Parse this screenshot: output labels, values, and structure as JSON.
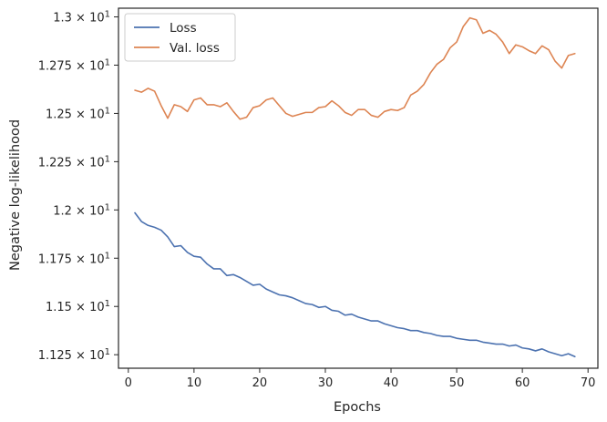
{
  "chart_data": {
    "type": "line",
    "xlabel": "Epochs",
    "ylabel": "Negative log-likelihood",
    "xlim": [
      -1.5,
      71.5
    ],
    "ylim": [
      11.18,
      13.045
    ],
    "x_ticks": [
      0,
      10,
      20,
      30,
      40,
      50,
      60,
      70
    ],
    "y_ticks": [
      {
        "value": 11.25,
        "label": "1.125 × 10¹"
      },
      {
        "value": 11.5,
        "label": "1.15 × 10¹"
      },
      {
        "value": 11.75,
        "label": "1.175 × 10¹"
      },
      {
        "value": 12.0,
        "label": "1.2 × 10¹"
      },
      {
        "value": 12.25,
        "label": "1.225 × 10¹"
      },
      {
        "value": 12.5,
        "label": "1.25 × 10¹"
      },
      {
        "value": 12.75,
        "label": "1.275 × 10¹"
      },
      {
        "value": 13.0,
        "label": "1.3 × 10¹"
      }
    ],
    "legend_position": "top-left",
    "grid": false,
    "series": [
      {
        "name": "Loss",
        "color": "#4c72b0",
        "x": [
          1,
          2,
          3,
          4,
          5,
          6,
          7,
          8,
          9,
          10,
          11,
          12,
          13,
          14,
          15,
          16,
          17,
          18,
          19,
          20,
          21,
          22,
          23,
          24,
          25,
          26,
          27,
          28,
          29,
          30,
          31,
          32,
          33,
          34,
          35,
          36,
          37,
          38,
          39,
          40,
          41,
          42,
          43,
          44,
          45,
          46,
          47,
          48,
          49,
          50,
          51,
          52,
          53,
          54,
          55,
          56,
          57,
          58,
          59,
          60,
          61,
          62,
          63,
          64,
          65,
          66,
          67,
          68
        ],
        "y": [
          11.985,
          11.94,
          11.92,
          11.91,
          11.895,
          11.86,
          11.81,
          11.815,
          11.78,
          11.76,
          11.755,
          11.72,
          11.695,
          11.695,
          11.66,
          11.665,
          11.65,
          11.63,
          11.61,
          11.615,
          11.59,
          11.575,
          11.56,
          11.555,
          11.545,
          11.53,
          11.515,
          11.51,
          11.495,
          11.5,
          11.48,
          11.475,
          11.455,
          11.46,
          11.445,
          11.435,
          11.425,
          11.425,
          11.41,
          11.4,
          11.39,
          11.385,
          11.375,
          11.375,
          11.365,
          11.36,
          11.35,
          11.345,
          11.345,
          11.335,
          11.33,
          11.325,
          11.325,
          11.315,
          11.31,
          11.305,
          11.305,
          11.295,
          11.3,
          11.285,
          11.28,
          11.27,
          11.28,
          11.265,
          11.255,
          11.245,
          11.255,
          11.24
        ]
      },
      {
        "name": "Val. loss",
        "color": "#dd8452",
        "x": [
          1,
          2,
          3,
          4,
          5,
          6,
          7,
          8,
          9,
          10,
          11,
          12,
          13,
          14,
          15,
          16,
          17,
          18,
          19,
          20,
          21,
          22,
          23,
          24,
          25,
          26,
          27,
          28,
          29,
          30,
          31,
          32,
          33,
          34,
          35,
          36,
          37,
          38,
          39,
          40,
          41,
          42,
          43,
          44,
          45,
          46,
          47,
          48,
          49,
          50,
          51,
          52,
          53,
          54,
          55,
          56,
          57,
          58,
          59,
          60,
          61,
          62,
          63,
          64,
          65,
          66,
          67,
          68
        ],
        "y": [
          12.62,
          12.61,
          12.63,
          12.615,
          12.54,
          12.475,
          12.545,
          12.535,
          12.51,
          12.57,
          12.58,
          12.545,
          12.545,
          12.535,
          12.555,
          12.51,
          12.47,
          12.48,
          12.53,
          12.54,
          12.57,
          12.58,
          12.54,
          12.5,
          12.485,
          12.495,
          12.505,
          12.505,
          12.53,
          12.535,
          12.565,
          12.54,
          12.505,
          12.49,
          12.52,
          12.52,
          12.49,
          12.48,
          12.51,
          12.52,
          12.515,
          12.53,
          12.595,
          12.615,
          12.65,
          12.71,
          12.755,
          12.78,
          12.84,
          12.87,
          12.95,
          12.995,
          12.985,
          12.915,
          12.93,
          12.91,
          12.87,
          12.81,
          12.855,
          12.845,
          12.825,
          12.81,
          12.85,
          12.83,
          12.77,
          12.735,
          12.8,
          12.81
        ]
      }
    ]
  }
}
